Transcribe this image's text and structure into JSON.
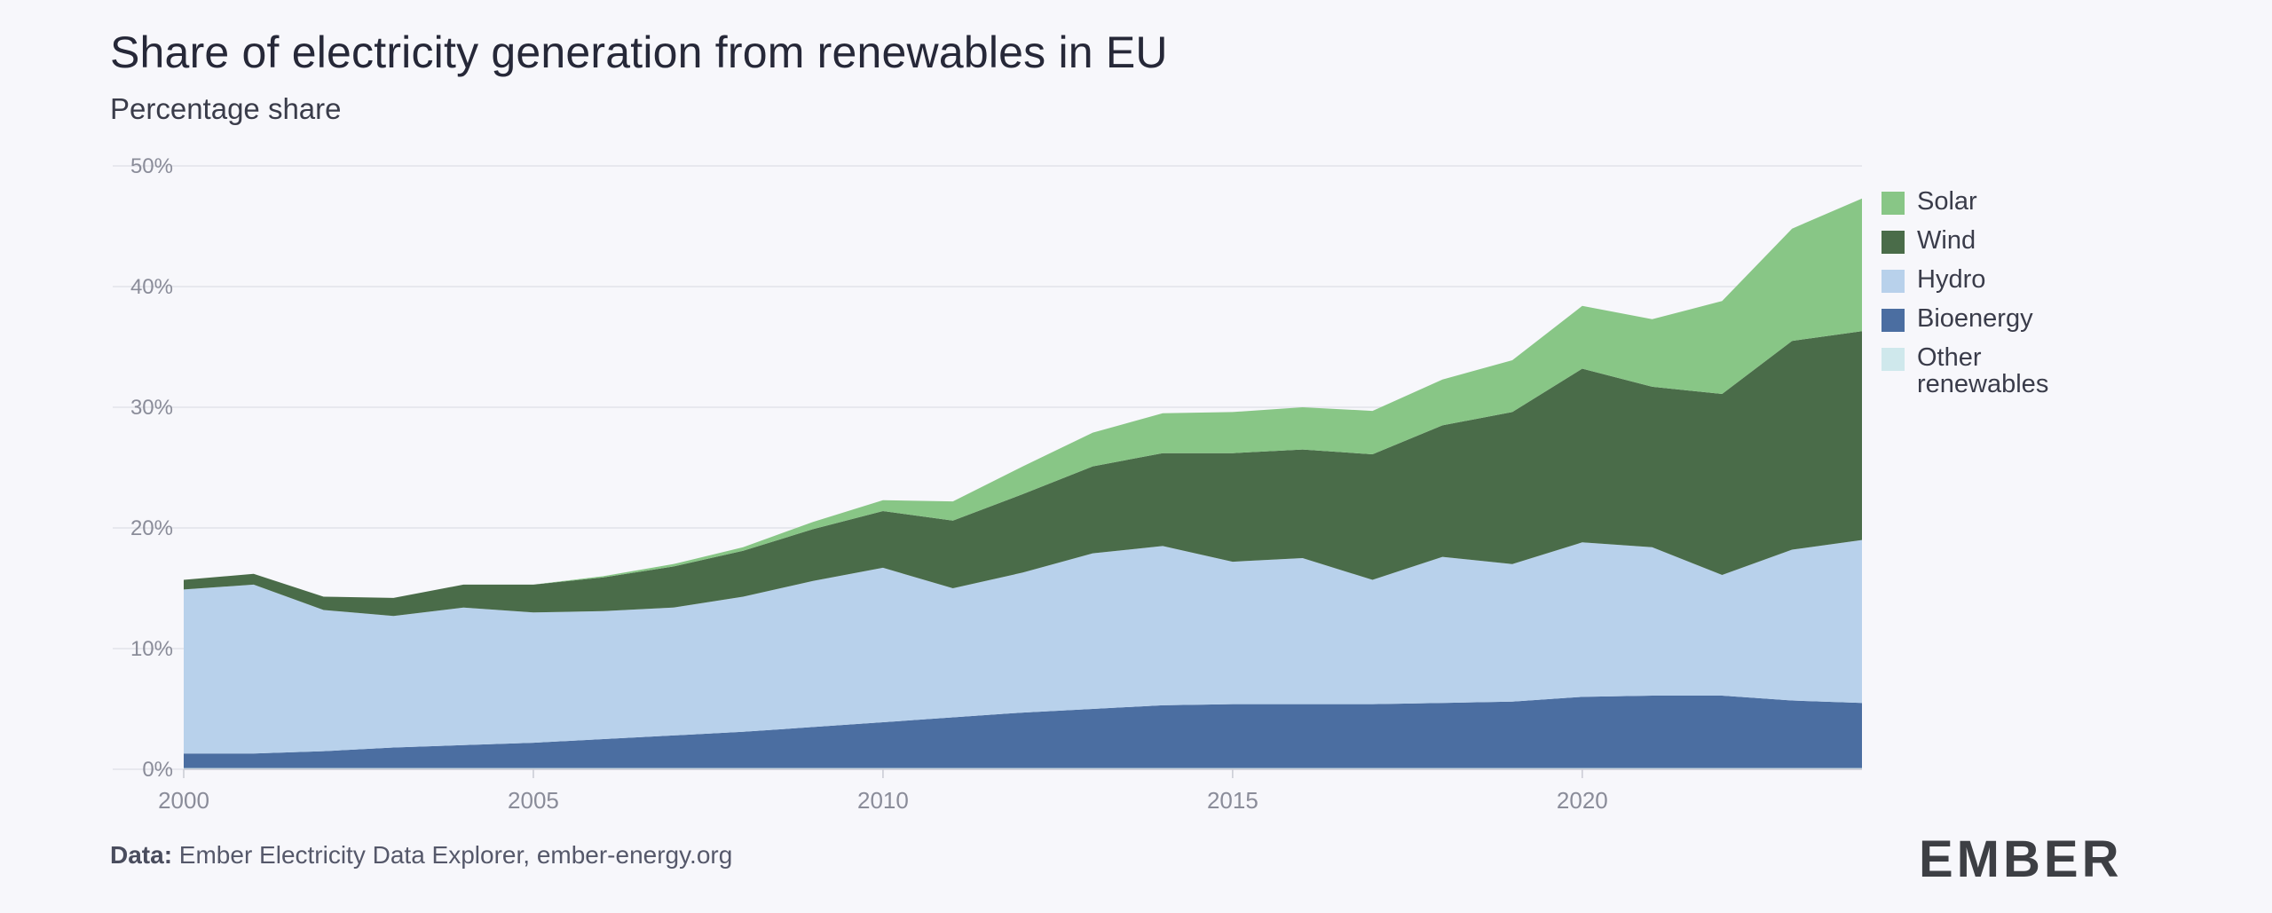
{
  "title": "Share of electricity generation from renewables in EU",
  "subtitle": "Percentage share",
  "source_label": "Data:",
  "source_text": "Ember Electricity Data Explorer, ember-energy.org",
  "logo_text": "EMBER",
  "chart_data": {
    "type": "area",
    "stacked": true,
    "x": [
      2000,
      2001,
      2002,
      2003,
      2004,
      2005,
      2006,
      2007,
      2008,
      2009,
      2010,
      2011,
      2012,
      2013,
      2014,
      2015,
      2016,
      2017,
      2018,
      2019,
      2020,
      2021,
      2022,
      2023,
      2024
    ],
    "xticks": [
      2000,
      2005,
      2010,
      2015,
      2020
    ],
    "ylim": [
      0,
      50
    ],
    "yticks": [
      0,
      10,
      20,
      30,
      40,
      50
    ],
    "ytick_suffix": "%",
    "grid": true,
    "legend_position": "right",
    "series": [
      {
        "name": "Other renewables",
        "color": "#cfe8ec",
        "values": [
          0.1,
          0.1,
          0.1,
          0.1,
          0.1,
          0.1,
          0.1,
          0.1,
          0.1,
          0.1,
          0.1,
          0.1,
          0.1,
          0.1,
          0.1,
          0.1,
          0.1,
          0.1,
          0.1,
          0.1,
          0.1,
          0.1,
          0.1,
          0.1,
          0.1
        ]
      },
      {
        "name": "Bioenergy",
        "color": "#4b6ea1",
        "values": [
          1.2,
          1.2,
          1.4,
          1.7,
          1.9,
          2.1,
          2.4,
          2.7,
          3.0,
          3.4,
          3.8,
          4.2,
          4.6,
          4.9,
          5.2,
          5.3,
          5.3,
          5.3,
          5.4,
          5.5,
          5.9,
          6.0,
          6.0,
          5.6,
          5.4
        ]
      },
      {
        "name": "Hydro",
        "color": "#b8d1eb",
        "values": [
          13.6,
          14.0,
          11.7,
          10.9,
          11.4,
          10.8,
          10.6,
          10.6,
          11.2,
          12.1,
          12.8,
          10.7,
          11.6,
          12.9,
          13.2,
          11.8,
          12.1,
          10.3,
          12.1,
          11.4,
          12.8,
          12.3,
          10.0,
          12.5,
          13.5
        ]
      },
      {
        "name": "Wind",
        "color": "#4a6c49",
        "values": [
          0.8,
          0.9,
          1.1,
          1.5,
          1.9,
          2.3,
          2.8,
          3.4,
          3.8,
          4.3,
          4.7,
          5.6,
          6.5,
          7.2,
          7.7,
          9.0,
          9.0,
          10.4,
          10.9,
          12.6,
          14.4,
          13.3,
          15.0,
          17.3,
          17.3
        ]
      },
      {
        "name": "Solar",
        "color": "#88c686",
        "values": [
          0.0,
          0.0,
          0.0,
          0.0,
          0.0,
          0.0,
          0.1,
          0.2,
          0.3,
          0.6,
          0.9,
          1.6,
          2.3,
          2.8,
          3.3,
          3.4,
          3.5,
          3.6,
          3.8,
          4.3,
          5.2,
          5.6,
          7.7,
          9.3,
          11.0
        ]
      }
    ],
    "legend_order": [
      "Solar",
      "Wind",
      "Hydro",
      "Bioenergy",
      "Other renewables"
    ]
  }
}
